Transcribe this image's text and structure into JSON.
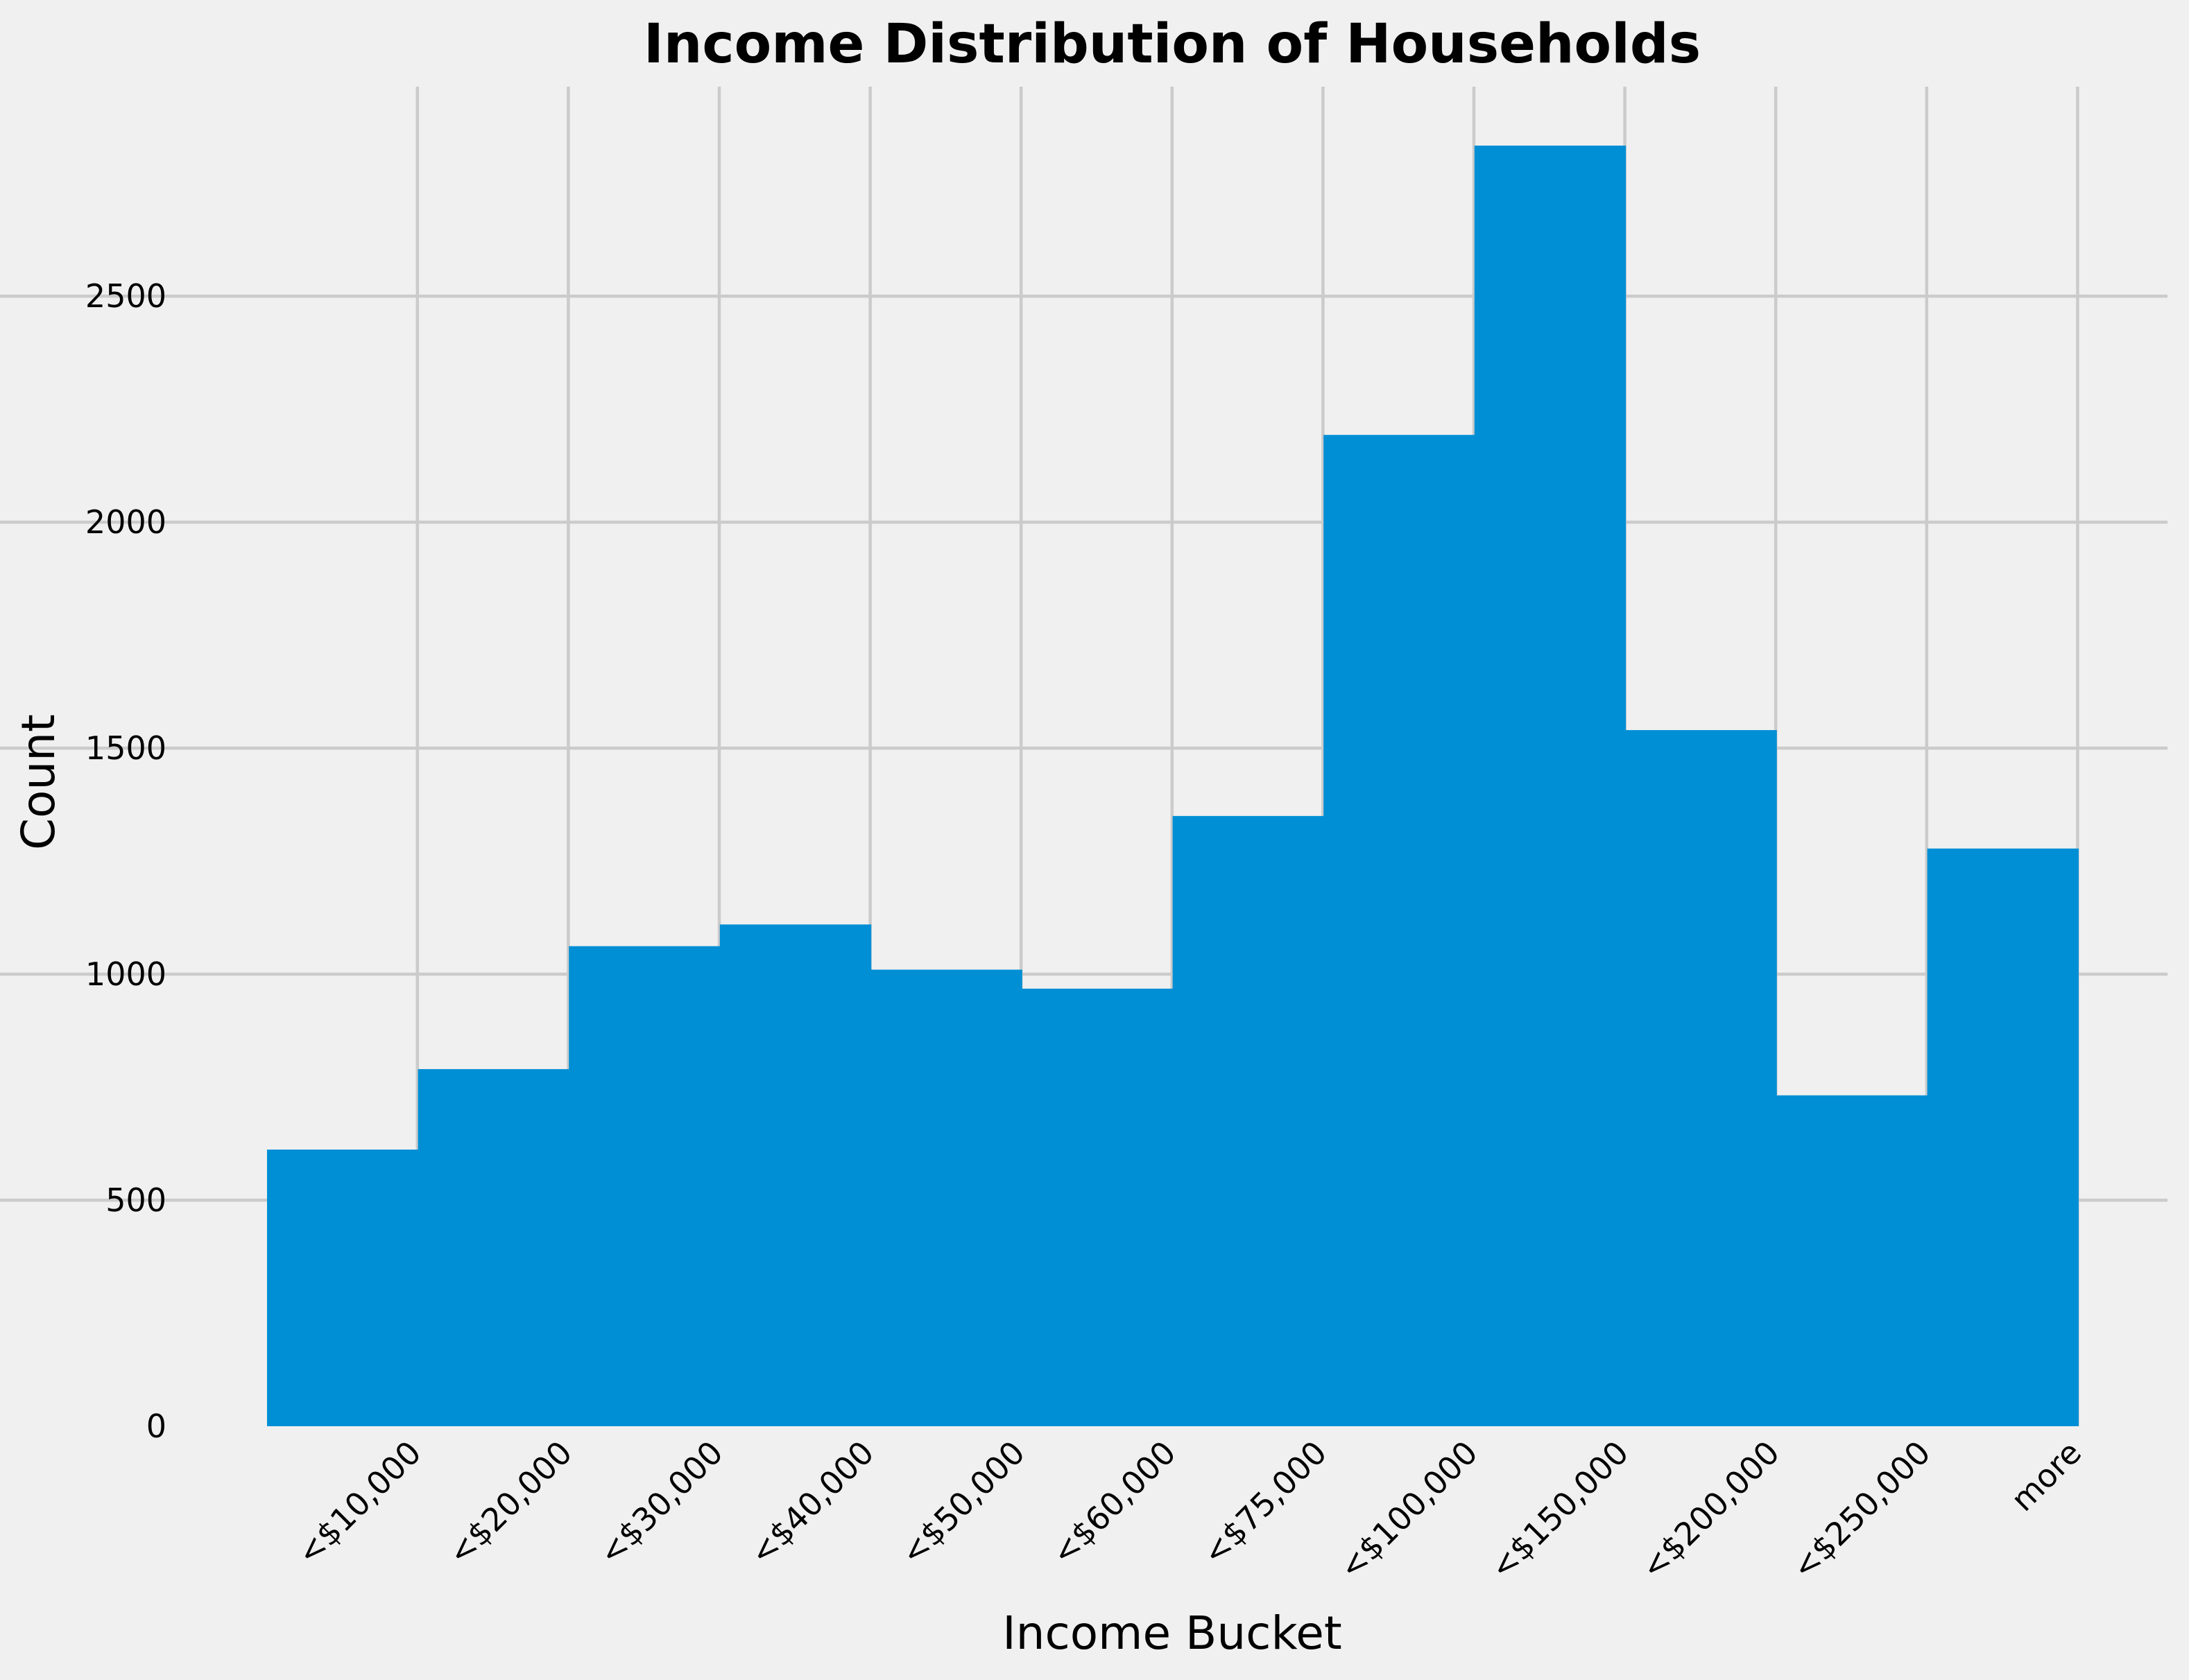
{
  "chart_data": {
    "type": "bar",
    "title": "Income Distribution of Households",
    "xlabel": "Income Bucket",
    "ylabel": "Count",
    "categories": [
      "<$10,000",
      "<$20,000",
      "<$30,000",
      "<$40,000",
      "<$50,000",
      "<$60,000",
      "<$75,000",
      "<$100,000",
      "<$150,000",
      "<$200,000",
      "<$250,000",
      "more"
    ],
    "values": [
      612,
      790,
      1062,
      1110,
      1010,
      968,
      1350,
      2193,
      2833,
      1540,
      732,
      1278
    ],
    "ylim": [
      0,
      2830
    ],
    "yticks": [
      0,
      500,
      1000,
      1500,
      2000,
      2500
    ],
    "grid": true,
    "legend": "none",
    "bar_color": "#008fd5",
    "background_color": "#f0f0f0",
    "grid_color": "#cbcbcb"
  }
}
